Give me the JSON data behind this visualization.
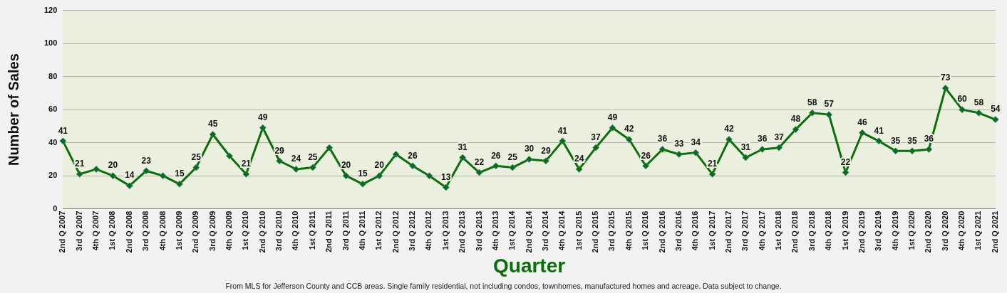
{
  "chart_data": {
    "type": "line",
    "xlabel": "Quarter",
    "ylabel": "Number of Sales",
    "annotations": [
      "From MLS for Jefferson County and CCB areas. Single family residential, not including condos, townhomes, manufactured homes and acreage.  Data subject to change."
    ],
    "categories": [
      "2nd Q 2007",
      "3rd Q 2007",
      "4th Q 2007",
      "1st Q 2008",
      "2nd Q 2008",
      "3rd Q 2008",
      "4th Q 2008",
      "1st Q 2009",
      "2nd Q 2009",
      "3rd Q 2009",
      "4th Q 2009",
      "1st Q 2010",
      "2nd Q 2010",
      "3rd Q 2010",
      "4th Q 2010",
      "1st Q 2011",
      "2nd Q 2011",
      "3rd Q 2011",
      "4th Q 2011",
      "1st Q 2012",
      "2nd Q 2012",
      "3rd Q 2012",
      "4th Q 2012",
      "1st Q 2013",
      "2nd Q 2013",
      "3rd Q 2013",
      "4th Q 2013",
      "1st Q 2014",
      "2nd Q 2014",
      "3rd Q 2014",
      "4th Q 2014",
      "1st Q 2015",
      "2nd Q 2015",
      "3rd Q 2015",
      "4th Q 2015",
      "1st Q 2016",
      "2nd Q 2016",
      "3rd Q 2016",
      "4th Q 2016",
      "1st Q 2017",
      "2nd Q 2017",
      "3rd Q 2017",
      "4th Q 2017",
      "1st Q 2018",
      "2nd Q 2018",
      "3rd Q 2018",
      "4th Q 2018",
      "1st Q 2019",
      "2nd Q 2019",
      "3rd Q 2019",
      "4th Q 2019",
      "1st Q 2020",
      "2nd Q 2020",
      "3rd Q 2020",
      "4th Q 2020",
      "1st Q 2021",
      "2nd Q 2021"
    ],
    "series": [
      {
        "color": "#0a6e0a",
        "values": [
          41,
          21,
          24,
          20,
          14,
          23,
          20,
          15,
          25,
          45,
          32,
          21,
          49,
          29,
          24,
          25,
          37,
          20,
          15,
          20,
          33,
          26,
          20,
          13,
          31,
          22,
          26,
          25,
          30,
          29,
          41,
          24,
          37,
          49,
          42,
          26,
          36,
          33,
          34,
          21,
          42,
          31,
          36,
          37,
          48,
          58,
          57,
          22,
          46,
          41,
          35,
          35,
          36,
          73,
          60,
          58,
          54
        ],
        "value_labels": [
          "41",
          "21",
          null,
          "20",
          "14",
          "23",
          null,
          "15",
          "25",
          "45",
          null,
          "21",
          "49",
          "29",
          "24",
          "25",
          null,
          "20",
          "15",
          "20",
          null,
          "26",
          null,
          "13",
          "31",
          "22",
          "26",
          "25",
          "30",
          "29",
          "41",
          "24",
          "37",
          "49",
          "42",
          "26",
          "36",
          "33",
          "34",
          "21",
          "42",
          "31",
          "36",
          "37",
          "48",
          "58",
          "57",
          "22",
          "46",
          "41",
          "35",
          "35",
          "36",
          "73",
          "60",
          "58",
          "54"
        ]
      }
    ],
    "ylim": [
      0,
      120
    ],
    "yticks": [
      0,
      20,
      40,
      60,
      80,
      100,
      120
    ],
    "grid": "y",
    "legend": false,
    "marker": "diamond",
    "line_style": "solid"
  }
}
